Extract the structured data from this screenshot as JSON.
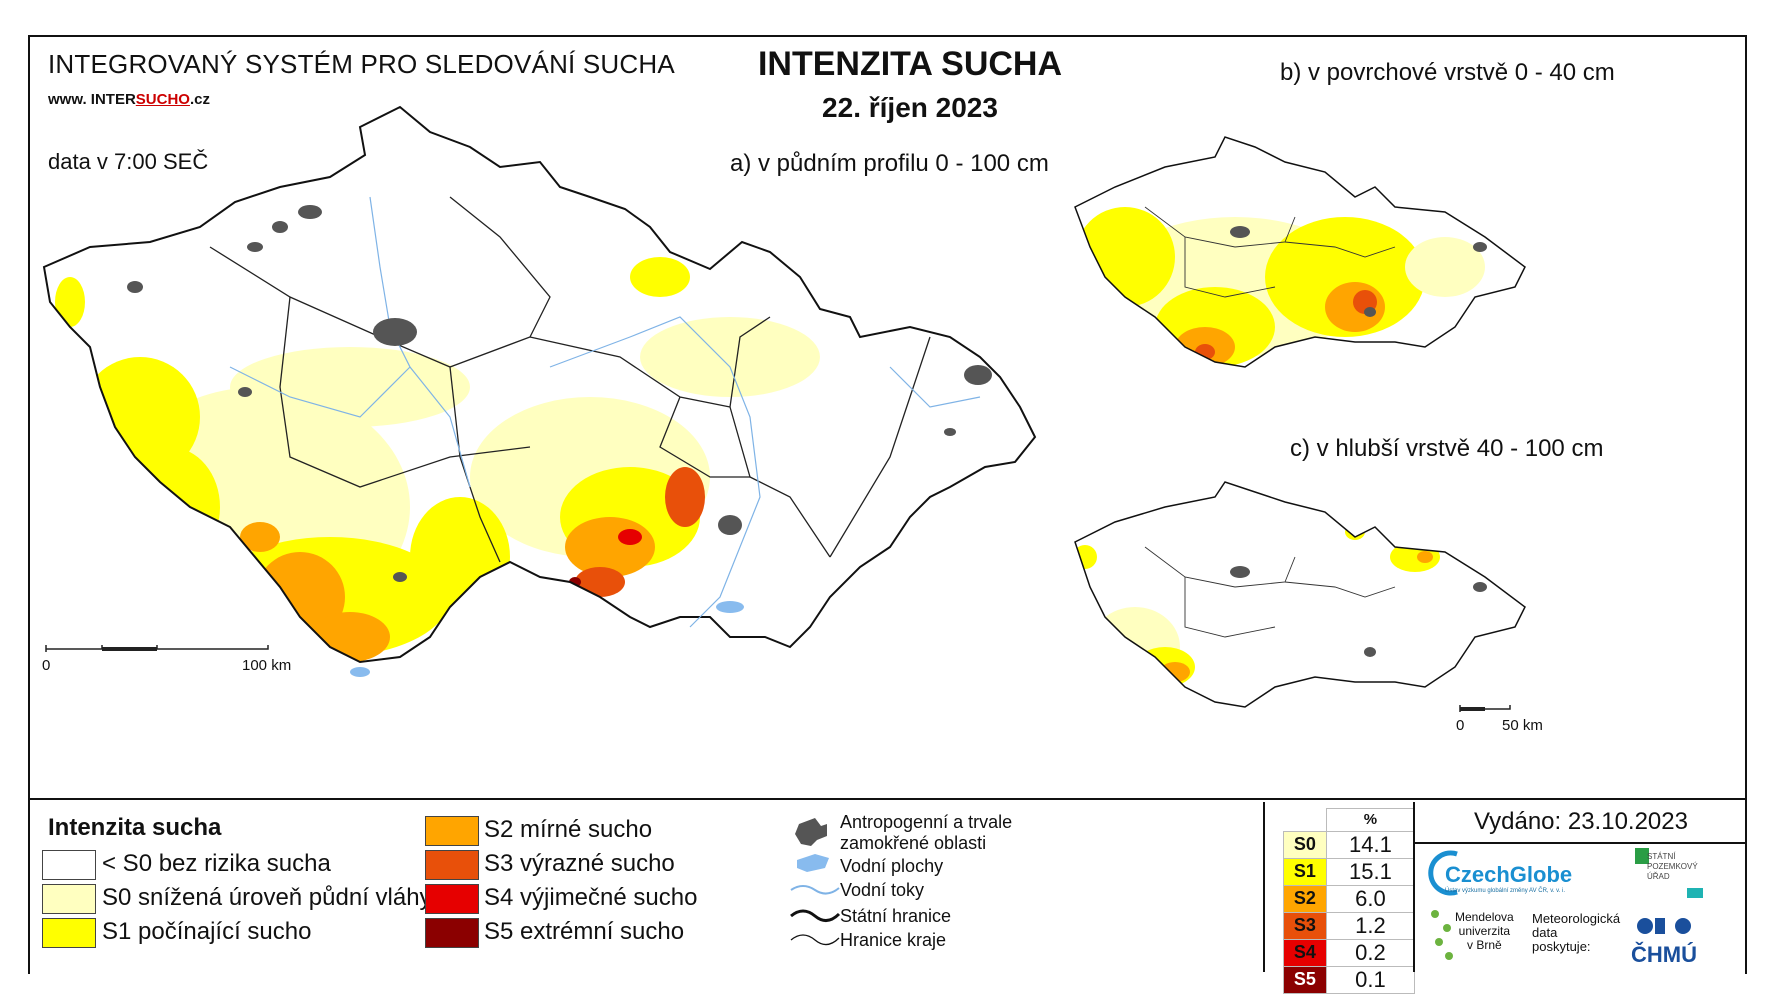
{
  "header": {
    "system_title": "INTEGROVANÝ SYSTÉM PRO SLEDOVÁNÍ SUCHA",
    "website_prefix": "www. INTER",
    "website_brand": "SUCHO",
    "website_suffix": ".cz",
    "data_time": "data v 7:00 SEČ",
    "main_title": "INTENZITA SUCHA",
    "date": "22. říjen 2023"
  },
  "maps": {
    "a_title": "a) v půdním profilu 0 - 100 cm",
    "b_title": "b) v povrchové vrstvě 0 - 40 cm",
    "c_title": "c) v hlubší vrstvě 40 - 100 cm",
    "scale_main": {
      "zero": "0",
      "end": "100 km"
    },
    "scale_small": {
      "zero": "0",
      "end": "50 km"
    }
  },
  "legend": {
    "title": "Intenzita sucha",
    "classes": [
      {
        "label": "< S0 bez rizika sucha",
        "color": "#ffffff"
      },
      {
        "label": "S0 snížená úroveň půdní vláhy",
        "color": "#ffffc0"
      },
      {
        "label": "S1 počínající sucho",
        "color": "#ffff00"
      },
      {
        "label": "S2 mírné sucho",
        "color": "#ffa500"
      },
      {
        "label": "S3 výrazné sucho",
        "color": "#e8500a"
      },
      {
        "label": "S4 výjimečné sucho",
        "color": "#e60000"
      },
      {
        "label": "S5 extrémní sucho",
        "color": "#8b0000"
      }
    ],
    "symbols": {
      "anthropogenic_line1": "Antropogenní a trvale",
      "anthropogenic_line2": "zamokřené oblasti",
      "water_bodies": "Vodní plochy",
      "water_streams": "Vodní toky",
      "state_border": "Státní hranice",
      "region_border": "Hranice kraje"
    }
  },
  "stats": {
    "header": "%",
    "rows": [
      {
        "class": "S0",
        "value": "14.1",
        "color": "#ffffc0"
      },
      {
        "class": "S1",
        "value": "15.1",
        "color": "#ffff00"
      },
      {
        "class": "S2",
        "value": "6.0",
        "color": "#ffa500"
      },
      {
        "class": "S3",
        "value": "1.2",
        "color": "#e8500a"
      },
      {
        "class": "S4",
        "value": "0.2",
        "color": "#e60000"
      },
      {
        "class": "S5",
        "value": "0.1",
        "color": "#8b0000"
      }
    ]
  },
  "issued": "Vydáno: 23.10.2023",
  "logos": {
    "czechglobe": "CzechGlobe",
    "czechglobe_sub": "Ústav výzkumu globální změny AV ČR, v. v. i.",
    "spu_line1": "STÁTNÍ",
    "spu_line2": "POZEMKOVÝ",
    "spu_line3": "ÚŘAD",
    "mendel_line1": "Mendelova",
    "mendel_line2": "univerzita",
    "mendel_line3": "v Brně",
    "meteo_line1": "Meteorologická",
    "meteo_line2": "data",
    "meteo_line3": "poskytuje:",
    "chmu": "ČHMÚ"
  }
}
